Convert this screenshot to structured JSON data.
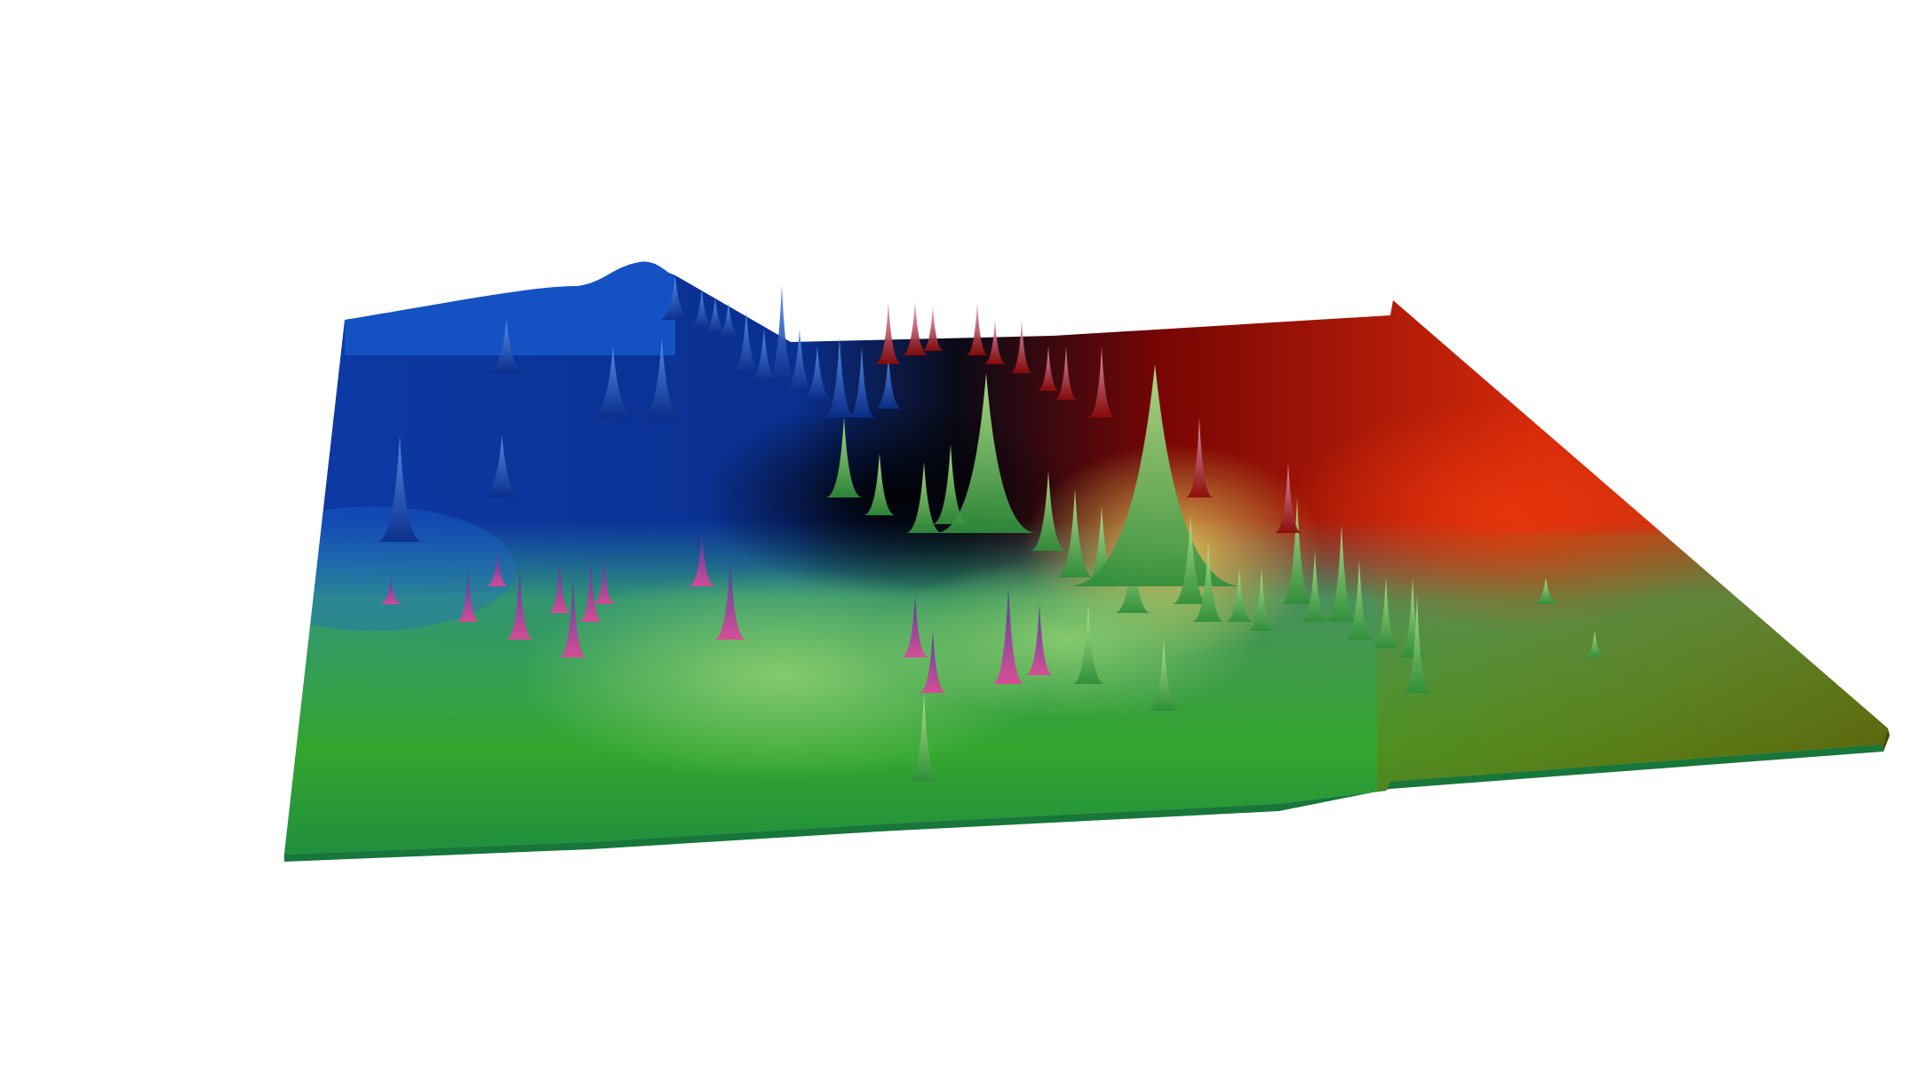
{
  "scene": {
    "subject": "surface-plot-render",
    "background_color": "#ffffff",
    "palette": {
      "deep_blue": "#0a2f8f",
      "blue": "#1150c8",
      "light_blue": "#2f78e0",
      "near_black": "#080810",
      "dark_red": "#6e0202",
      "red": "#cf2208",
      "bright_red": "#e0300a",
      "olive": "#8a7f10",
      "dark_olive": "#5d5a08",
      "yellow": "#d8c050",
      "teal": "#2b9aa8",
      "light_green": "#7cc850",
      "green": "#55b83a",
      "bright_green": "#3ca914",
      "dark_green": "#1b8a4c",
      "magenta": "#d0409a"
    },
    "spike_style": "sharp-peaks",
    "spike_count": 70
  }
}
